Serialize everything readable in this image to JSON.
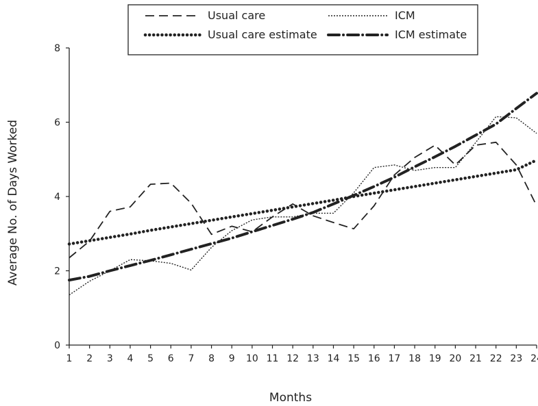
{
  "chart_data": {
    "type": "line",
    "xlabel": "Months",
    "ylabel": "Average No. of Days Worked",
    "x": [
      1,
      2,
      3,
      4,
      5,
      6,
      7,
      8,
      9,
      10,
      11,
      12,
      13,
      14,
      15,
      16,
      17,
      18,
      19,
      20,
      21,
      22,
      23,
      24
    ],
    "xlim": [
      1,
      24
    ],
    "ylim": [
      0,
      8
    ],
    "y_ticks": [
      0,
      2,
      4,
      6,
      8
    ],
    "grid": false,
    "legend_position": "top-center",
    "series": [
      {
        "name": "Usual care",
        "style": "dashed",
        "color": "#222222",
        "values": [
          2.35,
          2.8,
          3.6,
          3.72,
          4.33,
          4.36,
          3.82,
          2.98,
          3.2,
          3.05,
          3.45,
          3.8,
          3.48,
          3.3,
          3.13,
          3.75,
          4.58,
          5.05,
          5.38,
          4.85,
          5.38,
          5.46,
          4.85,
          3.75
        ]
      },
      {
        "name": "ICM",
        "style": "dotted",
        "color": "#222222",
        "values": [
          1.35,
          1.72,
          2.0,
          2.3,
          2.27,
          2.2,
          2.02,
          2.63,
          3.08,
          3.37,
          3.45,
          3.45,
          3.55,
          3.55,
          4.1,
          4.78,
          4.85,
          4.7,
          4.78,
          4.78,
          5.45,
          6.15,
          6.12,
          5.7
        ]
      },
      {
        "name": "Usual care estimate",
        "style": "thick-dotted",
        "color": "#222222",
        "values": [
          2.72,
          2.81,
          2.9,
          2.99,
          3.09,
          3.18,
          3.27,
          3.36,
          3.45,
          3.54,
          3.63,
          3.72,
          3.81,
          3.9,
          4.0,
          4.09,
          4.18,
          4.27,
          4.36,
          4.45,
          4.54,
          4.63,
          4.72,
          4.98
        ]
      },
      {
        "name": "ICM estimate",
        "style": "thick-dash-dot",
        "color": "#222222",
        "values": [
          1.75,
          1.85,
          2.0,
          2.14,
          2.28,
          2.43,
          2.58,
          2.73,
          2.88,
          3.05,
          3.22,
          3.39,
          3.57,
          3.8,
          4.03,
          4.27,
          4.52,
          4.8,
          5.07,
          5.35,
          5.65,
          5.95,
          6.37,
          6.78
        ]
      }
    ]
  }
}
